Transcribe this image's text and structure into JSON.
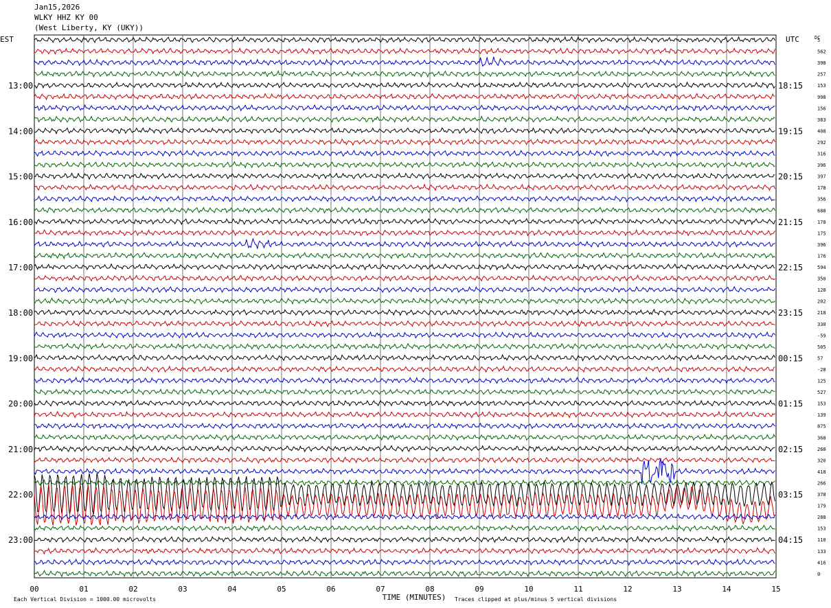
{
  "header": {
    "date": "Jan15,2026",
    "station": "WLKY HHZ KY 00",
    "location": "(West Liberty, KY (UKY))"
  },
  "labels": {
    "left_tz": "EST",
    "right_tz": "UTC",
    "dc": "DC",
    "xlabel": "TIME (MINUTES)",
    "footer_left": "Each Vertical Division = 1000.00 microvolts",
    "footer_right": "Traces clipped at plus/minus 5 vertical divisions"
  },
  "colors": {
    "trace_cycle": [
      "#000000",
      "#cc0000",
      "#0000cc",
      "#006600"
    ],
    "grid": "#000000"
  },
  "chart_data": {
    "type": "line",
    "title": "",
    "xlabel": "TIME (MINUTES)",
    "xlim": [
      0,
      15
    ],
    "x_ticks": [
      "00",
      "01",
      "02",
      "03",
      "04",
      "05",
      "06",
      "07",
      "08",
      "09",
      "10",
      "11",
      "12",
      "13",
      "14",
      "15"
    ],
    "trace_count": 48,
    "left_hour_labels": [
      {
        "trace": 4,
        "label": "13:00"
      },
      {
        "trace": 8,
        "label": "14:00"
      },
      {
        "trace": 12,
        "label": "15:00"
      },
      {
        "trace": 16,
        "label": "16:00"
      },
      {
        "trace": 20,
        "label": "17:00"
      },
      {
        "trace": 24,
        "label": "18:00"
      },
      {
        "trace": 28,
        "label": "19:00"
      },
      {
        "trace": 32,
        "label": "20:00"
      },
      {
        "trace": 36,
        "label": "21:00"
      },
      {
        "trace": 40,
        "label": "22:00"
      },
      {
        "trace": 44,
        "label": "23:00"
      }
    ],
    "right_hour_labels": [
      {
        "trace": 4,
        "label": "18:15"
      },
      {
        "trace": 8,
        "label": "19:15"
      },
      {
        "trace": 12,
        "label": "20:15"
      },
      {
        "trace": 16,
        "label": "21:15"
      },
      {
        "trace": 20,
        "label": "22:15"
      },
      {
        "trace": 24,
        "label": "23:15"
      },
      {
        "trace": 28,
        "label": "00:15"
      },
      {
        "trace": 32,
        "label": "01:15"
      },
      {
        "trace": 36,
        "label": "02:15"
      },
      {
        "trace": 40,
        "label": "03:15"
      },
      {
        "trace": 44,
        "label": "04:15"
      }
    ],
    "dc_offsets": [
      "5",
      "562",
      "398",
      "257",
      "153",
      "998",
      "156",
      "383",
      "408",
      "292",
      "316",
      "396",
      "397",
      "178",
      "356",
      "688",
      "178",
      "175",
      "396",
      "176",
      "594",
      "350",
      "128",
      "202",
      "218",
      "330",
      "-59",
      "505",
      "57",
      "-28",
      "125",
      "527",
      "153",
      "139",
      "875",
      "368",
      "268",
      "320",
      "418",
      "266",
      "378",
      "179",
      "288",
      "153",
      "110",
      "133",
      "416",
      "0"
    ],
    "events": [
      {
        "trace": 2,
        "minute": 9.2,
        "amplitude": "small"
      },
      {
        "trace": 18,
        "minute": 4.5,
        "amplitude": "small"
      },
      {
        "trace": 38,
        "minute": 12.6,
        "amplitude": "medium"
      },
      {
        "trace": 41,
        "minute": 0.0,
        "amplitude": "large",
        "note": "clipped oscillation spanning traces 40-44"
      }
    ]
  }
}
